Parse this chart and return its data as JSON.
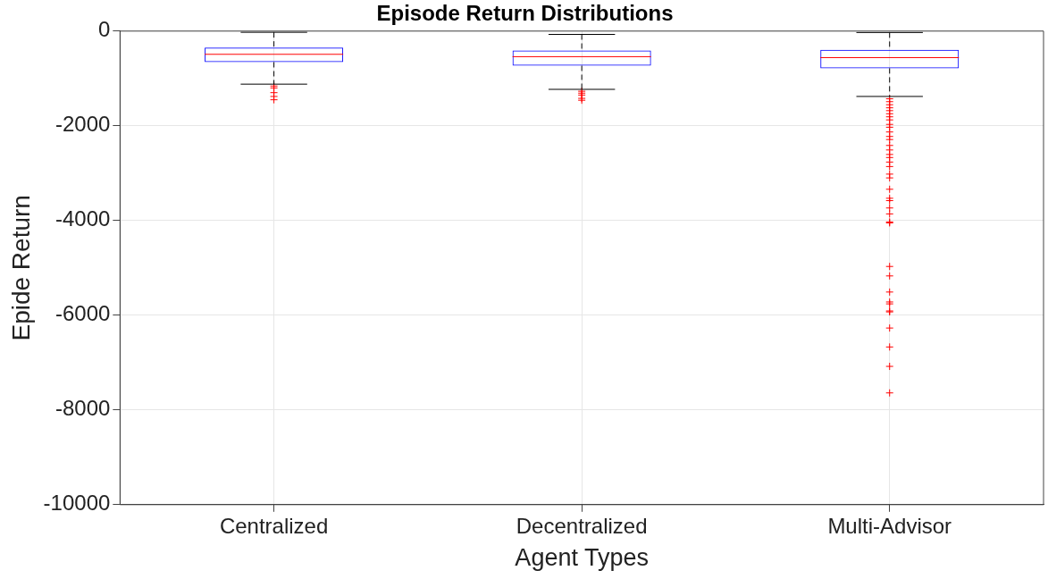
{
  "chart_data": {
    "type": "box",
    "title": "Episode Return Distributions",
    "xlabel": "Agent Types",
    "ylabel": "Epide Return",
    "categories": [
      "Centralized",
      "Decentralized",
      "Multi-Advisor"
    ],
    "boxes": [
      {
        "low": -1120,
        "q1": -655,
        "median": -490,
        "q3": -350,
        "high": -25,
        "outliers": [
          -1160,
          -1200,
          -1300,
          -1380,
          -1450
        ]
      },
      {
        "low": -1230,
        "q1": -730,
        "median": -540,
        "q3": -410,
        "high": -70,
        "outliers": [
          -1270,
          -1310,
          -1350,
          -1420,
          -1460
        ]
      },
      {
        "low": -1380,
        "q1": -785,
        "median": -560,
        "q3": -395,
        "high": -30,
        "outliers": [
          -1430,
          -1490,
          -1555,
          -1620,
          -1680,
          -1745,
          -1810,
          -1875,
          -1970,
          -2030,
          -2130,
          -2225,
          -2290,
          -2415,
          -2510,
          -2605,
          -2670,
          -2765,
          -2860,
          -3020,
          -3100,
          -3340,
          -3530,
          -3580,
          -3735,
          -3860,
          -4030,
          -4050,
          -4970,
          -5170,
          -5510,
          -5720,
          -5760,
          -5910,
          -5930,
          -6270,
          -6670,
          -7080,
          -7640
        ]
      }
    ],
    "ylim": [
      -10000,
      0
    ],
    "yticks": [
      -10000,
      -8000,
      -6000,
      -4000,
      -2000,
      0
    ],
    "grid": true,
    "legend": false,
    "marker": "cross"
  }
}
